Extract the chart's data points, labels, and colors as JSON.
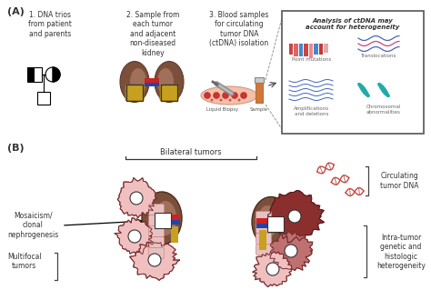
{
  "title_a": "(A)",
  "title_b": "(B)",
  "label1": "1. DNA trios\nfrom patient\nand parents",
  "label2": "2. Sample from\neach tumor\nand adjacent\nnon-diseased\nkidney",
  "label3": "3. Blood samples\nfor circulating\ntumor DNA\n(ctDNA) isolation",
  "label_liquid": "Liquid Biopsy",
  "label_sample": "Sample",
  "box_title": "Analysis of ctDNA may\naccount for heterogeneity",
  "box_sub1": "Point mutations",
  "box_sub2": "Translocations",
  "box_sub3": "Amplifications\nand deletions",
  "box_sub4": "Chromosomal\nabnormalities",
  "label_bilateral": "Bilateral tumors",
  "label_circulating": "Circulating\ntumor DNA",
  "label_mosaicism": "Mosaicism/\nclonal\nnephrogenesis",
  "label_multifocal": "Multifocal\ntumors",
  "label_intratumor": "Intra-tumor\ngenetic and\nhistologic\nheterogeneity",
  "bg_color": "#ffffff",
  "kidney_brown": "#7B4F3A",
  "kidney_inner": "#A0705A",
  "tumor_pink": "#E8A8A8",
  "tumor_dark": "#8B2E2E",
  "tumor_medium": "#C07070",
  "tumor_light": "#F0C0C0",
  "text_color": "#333333",
  "box_border": "#555555",
  "dna_red": "#CC4444",
  "dna_blue": "#4466BB",
  "dna_teal": "#22AAAA",
  "vein_red": "#CC2222",
  "vein_blue": "#2244AA",
  "vein_yellow": "#C8A020",
  "tube_color": "#D4763A",
  "blood_red": "#CC3333",
  "rest_pink": "#E8C0C0",
  "rest_stripe": "#CC8888"
}
